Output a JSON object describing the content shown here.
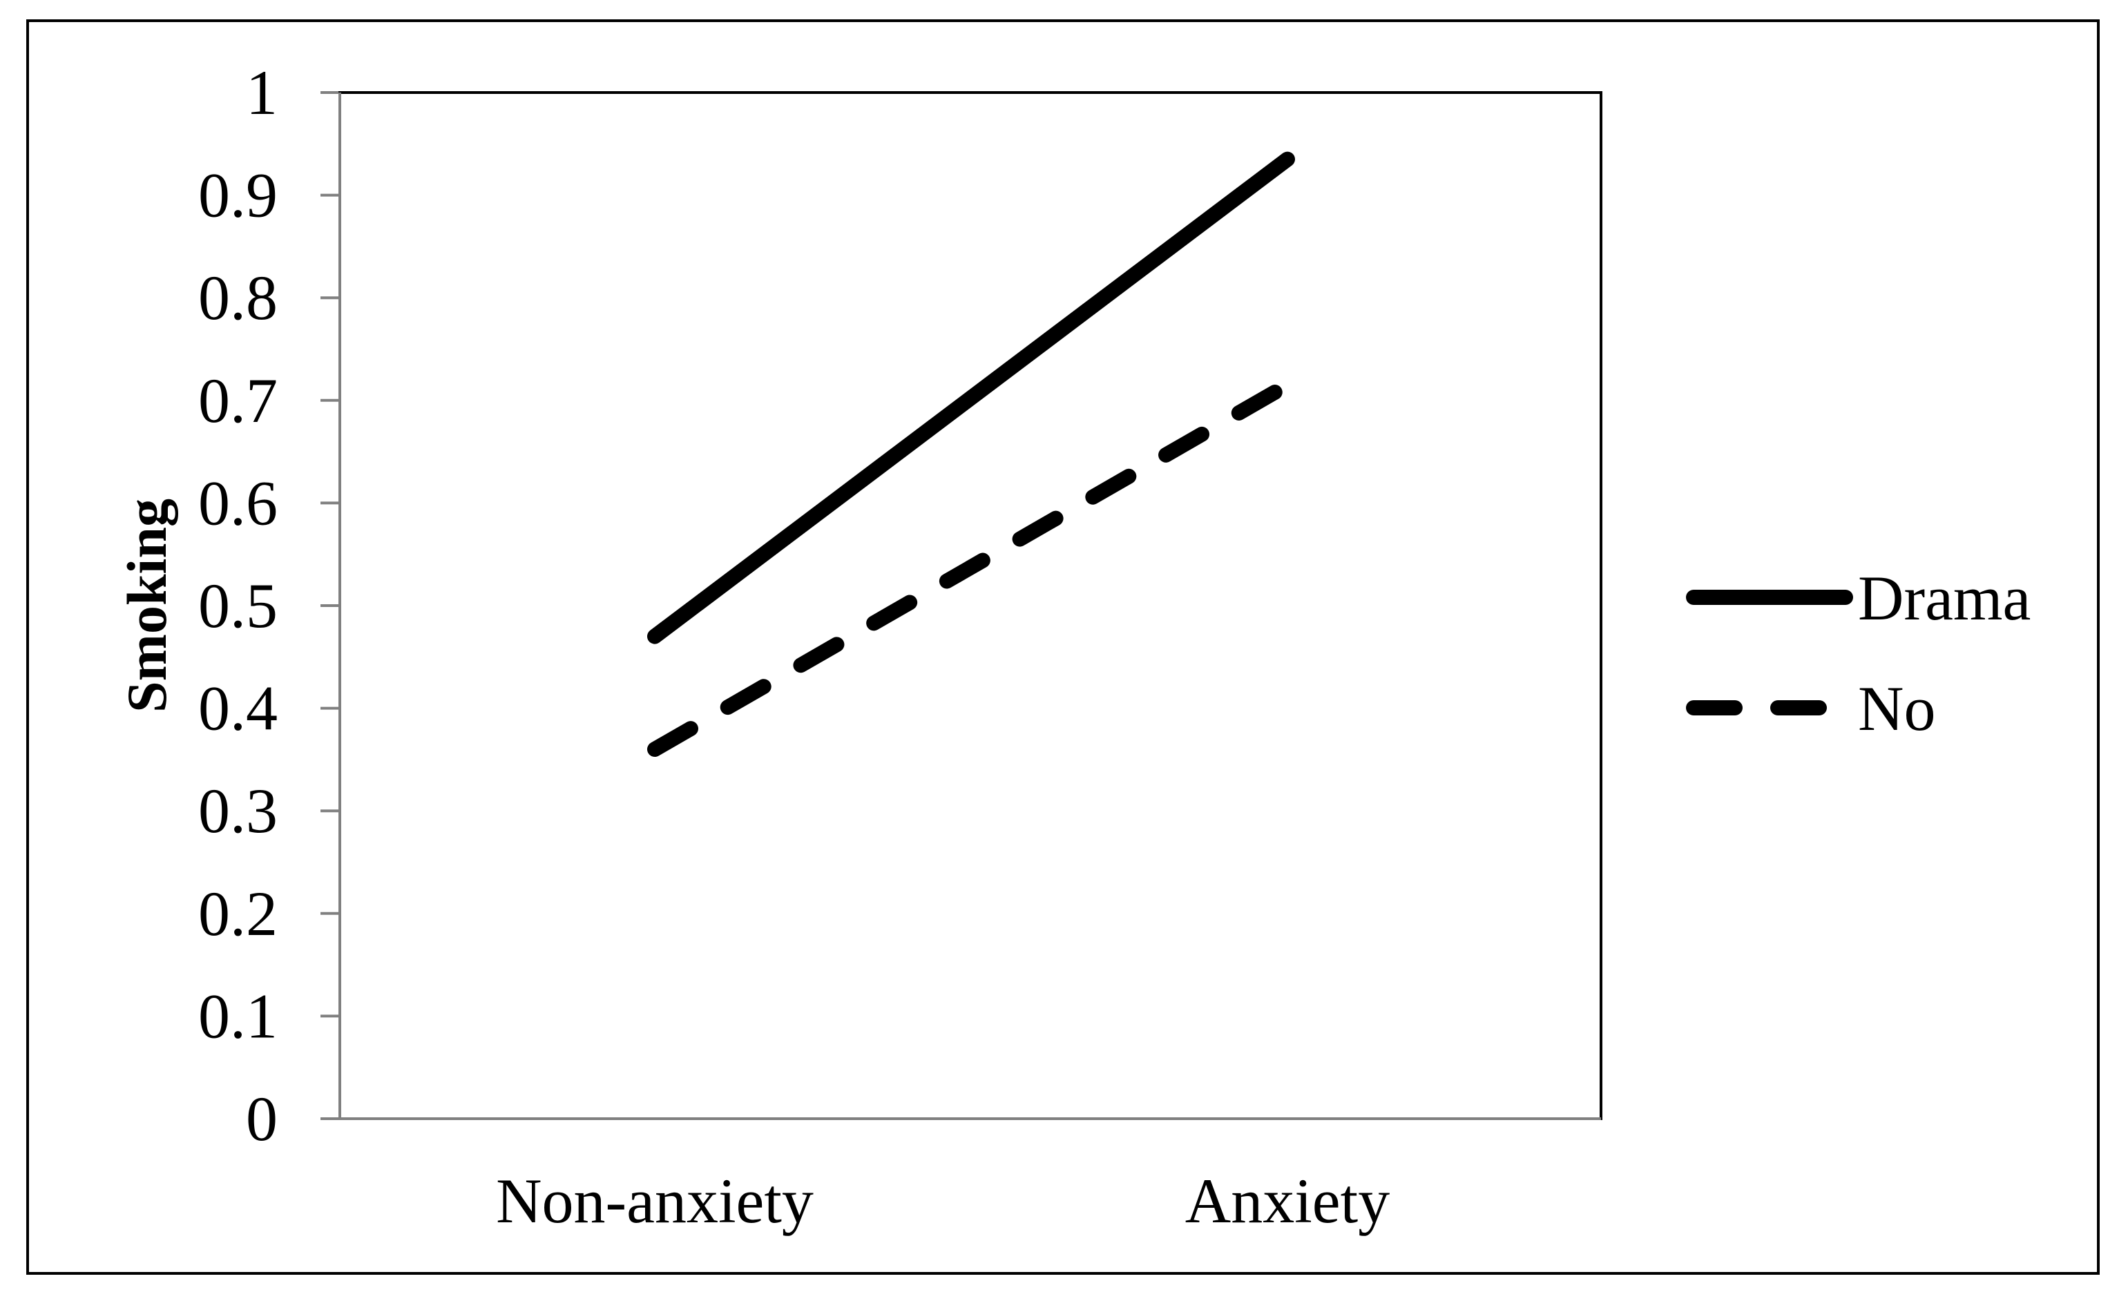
{
  "chart_data": {
    "type": "line",
    "title": "",
    "xlabel": "",
    "ylabel": "Smoking",
    "categories": [
      "Non-anxiety",
      "Anxiety"
    ],
    "ylim": [
      0,
      1
    ],
    "yticks": [
      "0",
      "0.1",
      "0.2",
      "0.3",
      "0.4",
      "0.5",
      "0.6",
      "0.7",
      "0.8",
      "0.9",
      "1"
    ],
    "grid": false,
    "legend_position": "right",
    "series": [
      {
        "name": "Drama",
        "values": [
          0.47,
          0.935
        ],
        "line_style": "solid",
        "color": "#000000"
      },
      {
        "name": "No",
        "values": [
          0.36,
          0.715
        ],
        "line_style": "dashed",
        "color": "#000000"
      }
    ]
  }
}
